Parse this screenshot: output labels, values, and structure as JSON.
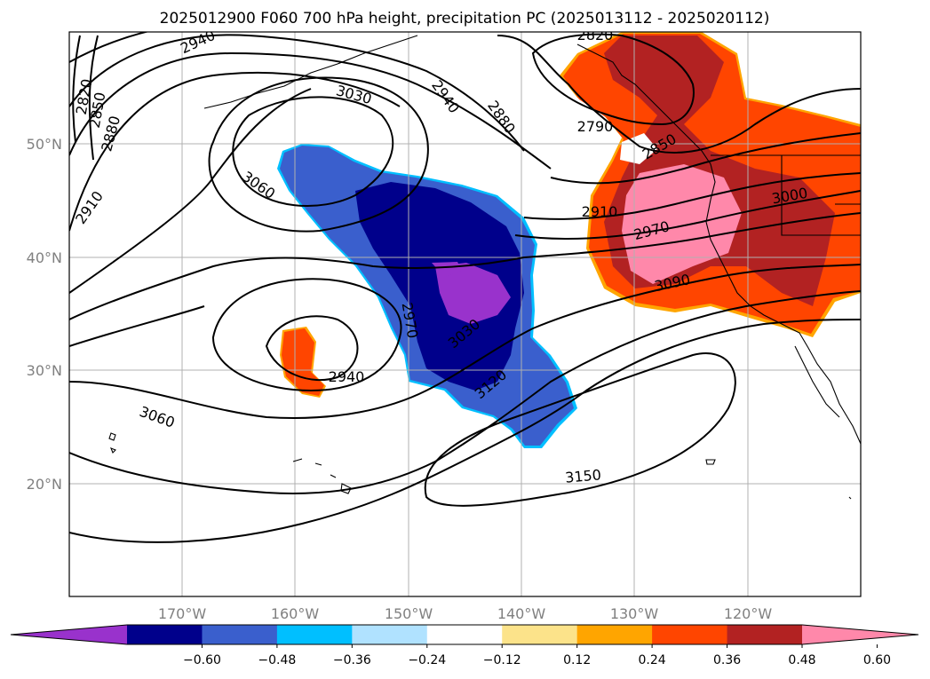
{
  "title": "2025012900 F060 700 hPa height, precipitation PC (2025013112 - 2025020112)",
  "axes": {
    "lat_labels": [
      "50°N",
      "40°N",
      "30°N",
      "20°N"
    ],
    "lon_labels": [
      "170°W",
      "160°W",
      "150°W",
      "140°W",
      "130°W",
      "120°W"
    ]
  },
  "height_contour_labels": [
    "2940",
    "3030",
    "2940",
    "2880",
    "2820",
    "2790",
    "2850",
    "3060",
    "2910",
    "2970",
    "3000",
    "3090",
    "2970",
    "3030",
    "3120",
    "2940",
    "3060",
    "3150",
    "2820",
    "2850",
    "2880",
    "2910"
  ],
  "colorbar": {
    "colors": [
      "#9932cc",
      "#00008b",
      "#3a5fcd",
      "#00bfff",
      "#b0e2ff",
      "#ffffff",
      "#fce38a",
      "#ffa500",
      "#ff4500",
      "#b22222",
      "#ff88aa"
    ],
    "tick_labels": [
      "−0.60",
      "−0.48",
      "−0.36",
      "−0.24",
      "−0.12",
      "0.12",
      "0.24",
      "0.36",
      "0.48",
      "0.60"
    ]
  }
}
